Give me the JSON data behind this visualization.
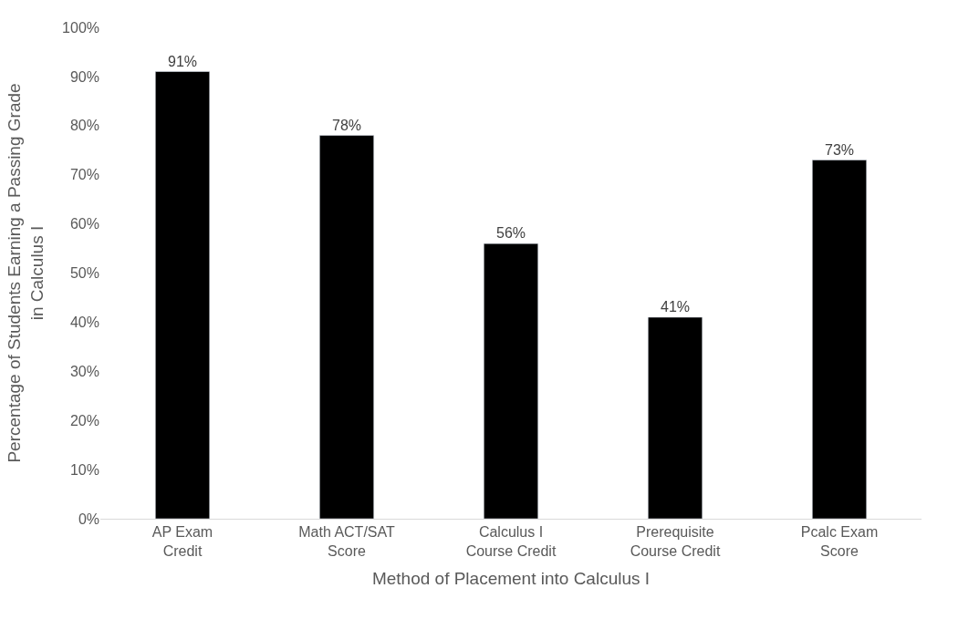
{
  "chart_data": {
    "type": "bar",
    "xlabel": "Method of Placement into Calculus I",
    "ylabel": "Percentage of Students Earning a Passing Grade in Calculus I",
    "categories": [
      "AP Exam Credit",
      "Math ACT/SAT Score",
      "Calculus I Course Credit",
      "Prerequisite Course Credit",
      "Pcalc Exam Score"
    ],
    "values": [
      91,
      78,
      56,
      41,
      73
    ],
    "value_labels": [
      "91%",
      "78%",
      "56%",
      "41%",
      "73%"
    ],
    "color": "#000000",
    "ylim": [
      0,
      100
    ],
    "yticks": [
      {
        "value": 0,
        "label": "0%"
      },
      {
        "value": 10,
        "label": "10%"
      },
      {
        "value": 20,
        "label": "20%"
      },
      {
        "value": 30,
        "label": "30%"
      },
      {
        "value": 40,
        "label": "40%"
      },
      {
        "value": 50,
        "label": "50%"
      },
      {
        "value": 60,
        "label": "60%"
      },
      {
        "value": 70,
        "label": "70%"
      },
      {
        "value": 80,
        "label": "80%"
      },
      {
        "value": 90,
        "label": "90%"
      },
      {
        "value": 100,
        "label": "100%"
      }
    ],
    "legend": false
  }
}
